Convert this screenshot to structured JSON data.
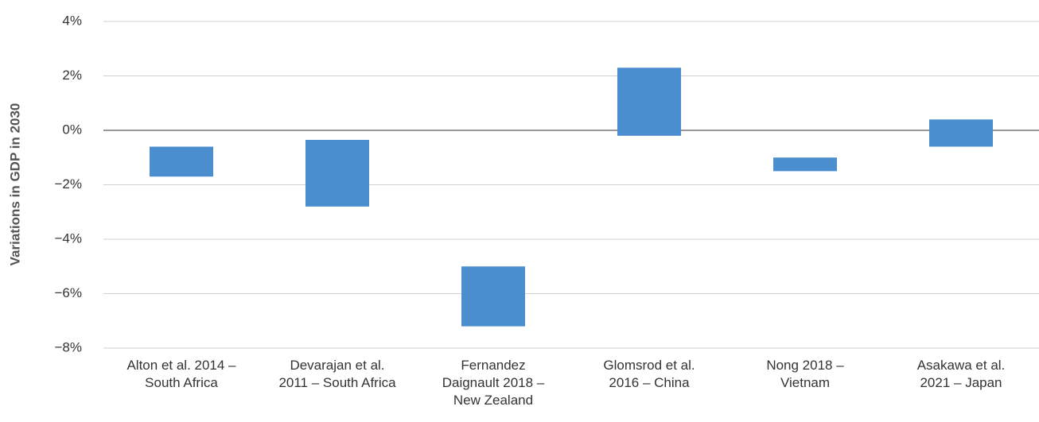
{
  "chart_data": {
    "type": "floating_bar",
    "ylabel": "Variations in GDP in 2030",
    "categories": [
      "Alton et al. 2014 –\nSouth Africa",
      "Devarajan et al.\n2011 – South Africa",
      "Fernandez\nDaignault 2018 –\nNew Zealand",
      "Glomsrod et al.\n2016 – China",
      "Nong 2018 –\nVietnam",
      "Asakawa et al.\n2021 – Japan"
    ],
    "low": [
      -1.7,
      -2.8,
      -7.2,
      -0.2,
      -1.5,
      -0.6
    ],
    "high": [
      -0.6,
      -0.35,
      -5.0,
      2.3,
      -1.0,
      0.4
    ],
    "color": "#4a8ecf",
    "ylim": [
      -8,
      4
    ],
    "yticks": [
      {
        "value": -8,
        "label": "−8%"
      },
      {
        "value": -6,
        "label": "−6%"
      },
      {
        "value": -4,
        "label": "−4%"
      },
      {
        "value": -2,
        "label": "−2%"
      },
      {
        "value": 0,
        "label": "0%"
      },
      {
        "value": 2,
        "label": "2%"
      },
      {
        "value": 4,
        "label": "4%"
      }
    ],
    "grid": true
  }
}
